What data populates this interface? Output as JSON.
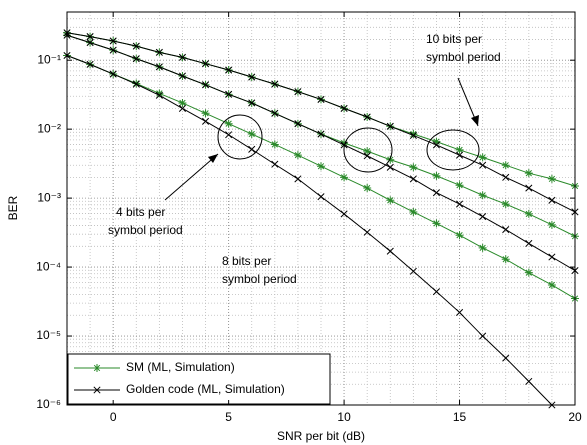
{
  "chart_data": {
    "type": "line",
    "xlabel": "SNR per bit (dB)",
    "ylabel": "BER",
    "x": [
      -2,
      -1,
      0,
      1,
      2,
      3,
      4,
      5,
      6,
      7,
      8,
      9,
      10,
      11,
      12,
      13,
      14,
      15,
      16,
      17,
      18,
      19,
      20
    ],
    "series": [
      {
        "name": "SM (ML, Simulation)",
        "color": "#2a8a2a",
        "marker": "star",
        "values": [
          0.117,
          0.087,
          0.063,
          0.046,
          0.033,
          0.024,
          0.017,
          0.012,
          0.0085,
          0.006,
          0.0042,
          0.0029,
          0.002,
          0.0014,
          0.00093,
          0.00063,
          0.00043,
          0.00029,
          0.00019,
          0.00013,
          8.3e-05,
          5.5e-05,
          3.5e-05
        ]
      },
      {
        "name": "Golden code (ML, Simulation)",
        "color": "#000000",
        "marker": "x",
        "values": [
          0.117,
          0.087,
          0.063,
          0.045,
          0.031,
          0.02,
          0.013,
          0.0083,
          0.0051,
          0.0031,
          0.0019,
          0.00105,
          0.00059,
          0.00032,
          0.00017,
          8.7e-05,
          4.4e-05,
          2.2e-05,
          1e-05,
          4.8e-06,
          2.2e-06,
          1e-06,
          null
        ]
      },
      {
        "name": "SM (ML, Simulation)",
        "color": "#2a8a2a",
        "marker": "star",
        "values": [
          0.23,
          0.18,
          0.14,
          0.105,
          0.08,
          0.059,
          0.044,
          0.032,
          0.024,
          0.017,
          0.012,
          0.0085,
          0.0063,
          0.0048,
          0.0036,
          0.0028,
          0.0021,
          0.00154,
          0.0011,
          0.00082,
          0.00059,
          0.00041,
          0.00028
        ]
      },
      {
        "name": "Golden code (ML, Simulation)",
        "color": "#000000",
        "marker": "x",
        "values": [
          0.23,
          0.18,
          0.14,
          0.105,
          0.08,
          0.059,
          0.044,
          0.032,
          0.024,
          0.017,
          0.012,
          0.0085,
          0.0059,
          0.0041,
          0.0028,
          0.0019,
          0.0012,
          0.00082,
          0.00054,
          0.00035,
          0.00022,
          0.00014,
          8.9e-05
        ]
      },
      {
        "name": "SM (ML, Simulation)",
        "color": "#2a8a2a",
        "marker": "star",
        "values": [
          0.25,
          0.22,
          0.19,
          0.16,
          0.13,
          0.11,
          0.089,
          0.072,
          0.057,
          0.045,
          0.035,
          0.027,
          0.02,
          0.015,
          0.011,
          0.0085,
          0.0066,
          0.005,
          0.0039,
          0.003,
          0.0023,
          0.0019,
          0.0015
        ]
      },
      {
        "name": "Golden code (ML, Simulation)",
        "color": "#000000",
        "marker": "x",
        "values": [
          0.25,
          0.22,
          0.19,
          0.16,
          0.13,
          0.11,
          0.089,
          0.072,
          0.057,
          0.045,
          0.035,
          0.027,
          0.02,
          0.015,
          0.011,
          0.0081,
          0.0059,
          0.0042,
          0.003,
          0.002,
          0.0014,
          0.00093,
          0.00063
        ]
      }
    ],
    "xlim": [
      -2,
      20
    ],
    "xticks": [
      0,
      5,
      10,
      15,
      20
    ],
    "ylim": [
      1e-06,
      0.5
    ],
    "log_y": true,
    "yticks": [
      {
        "value": 1e-06,
        "label": "10⁻⁶"
      },
      {
        "value": 1e-05,
        "label": "10⁻⁵"
      },
      {
        "value": 0.0001,
        "label": "10⁻⁴"
      },
      {
        "value": 0.001,
        "label": "10⁻³"
      },
      {
        "value": 0.01,
        "label": "10⁻²"
      },
      {
        "value": 0.1,
        "label": "10⁻¹"
      }
    ],
    "grid": true,
    "legend": "lower left",
    "annotations": [
      {
        "lines": [
          "10 bits per",
          "symbol period"
        ]
      },
      {
        "lines": [
          "4 bits per",
          "symbol period"
        ]
      },
      {
        "lines": [
          "8 bits per",
          "symbol period"
        ]
      }
    ]
  }
}
